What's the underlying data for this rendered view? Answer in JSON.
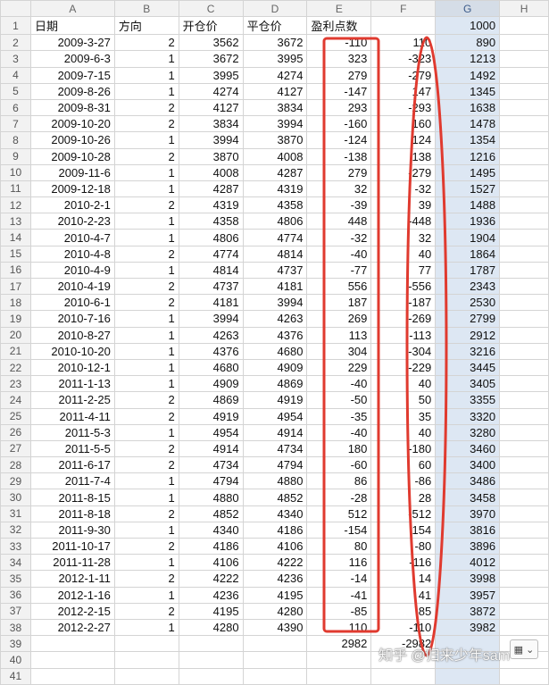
{
  "columns": [
    "A",
    "B",
    "C",
    "D",
    "E",
    "F",
    "G",
    "H"
  ],
  "header": [
    "日期",
    "方向",
    "开仓价",
    "平仓价",
    "盈利点数",
    "",
    1000,
    ""
  ],
  "rows": [
    [
      "2009-3-27",
      2,
      3562,
      3672,
      -110,
      110,
      890
    ],
    [
      "2009-6-3",
      1,
      3672,
      3995,
      323,
      -323,
      1213
    ],
    [
      "2009-7-15",
      1,
      3995,
      4274,
      279,
      -279,
      1492
    ],
    [
      "2009-8-26",
      1,
      4274,
      4127,
      -147,
      147,
      1345
    ],
    [
      "2009-8-31",
      2,
      4127,
      3834,
      293,
      -293,
      1638
    ],
    [
      "2009-10-20",
      2,
      3834,
      3994,
      -160,
      160,
      1478
    ],
    [
      "2009-10-26",
      1,
      3994,
      3870,
      -124,
      124,
      1354
    ],
    [
      "2009-10-28",
      2,
      3870,
      4008,
      -138,
      138,
      1216
    ],
    [
      "2009-11-6",
      1,
      4008,
      4287,
      279,
      -279,
      1495
    ],
    [
      "2009-12-18",
      1,
      4287,
      4319,
      32,
      -32,
      1527
    ],
    [
      "2010-2-1",
      2,
      4319,
      4358,
      -39,
      39,
      1488
    ],
    [
      "2010-2-23",
      1,
      4358,
      4806,
      448,
      -448,
      1936
    ],
    [
      "2010-4-7",
      1,
      4806,
      4774,
      -32,
      32,
      1904
    ],
    [
      "2010-4-8",
      2,
      4774,
      4814,
      -40,
      40,
      1864
    ],
    [
      "2010-4-9",
      1,
      4814,
      4737,
      -77,
      77,
      1787
    ],
    [
      "2010-4-19",
      2,
      4737,
      4181,
      556,
      -556,
      2343
    ],
    [
      "2010-6-1",
      2,
      4181,
      3994,
      187,
      -187,
      2530
    ],
    [
      "2010-7-16",
      1,
      3994,
      4263,
      269,
      -269,
      2799
    ],
    [
      "2010-8-27",
      1,
      4263,
      4376,
      113,
      -113,
      2912
    ],
    [
      "2010-10-20",
      1,
      4376,
      4680,
      304,
      -304,
      3216
    ],
    [
      "2010-12-1",
      1,
      4680,
      4909,
      229,
      -229,
      3445
    ],
    [
      "2011-1-13",
      1,
      4909,
      4869,
      -40,
      40,
      3405
    ],
    [
      "2011-2-25",
      2,
      4869,
      4919,
      -50,
      50,
      3355
    ],
    [
      "2011-4-11",
      2,
      4919,
      4954,
      -35,
      35,
      3320
    ],
    [
      "2011-5-3",
      1,
      4954,
      4914,
      -40,
      40,
      3280
    ],
    [
      "2011-5-5",
      2,
      4914,
      4734,
      180,
      -180,
      3460
    ],
    [
      "2011-6-17",
      2,
      4734,
      4794,
      -60,
      60,
      3400
    ],
    [
      "2011-7-4",
      1,
      4794,
      4880,
      86,
      -86,
      3486
    ],
    [
      "2011-8-15",
      1,
      4880,
      4852,
      -28,
      28,
      3458
    ],
    [
      "2011-8-18",
      2,
      4852,
      4340,
      512,
      -512,
      3970
    ],
    [
      "2011-9-30",
      1,
      4340,
      4186,
      -154,
      154,
      3816
    ],
    [
      "2011-10-17",
      2,
      4186,
      4106,
      80,
      -80,
      3896
    ],
    [
      "2011-11-28",
      1,
      4106,
      4222,
      116,
      -116,
      4012
    ],
    [
      "2012-1-11",
      2,
      4222,
      4236,
      -14,
      14,
      3998
    ],
    [
      "2012-1-16",
      1,
      4236,
      4195,
      -41,
      41,
      3957
    ],
    [
      "2012-2-15",
      2,
      4195,
      4280,
      -85,
      85,
      3872
    ],
    [
      "2012-2-27",
      1,
      4280,
      4390,
      110,
      -110,
      3982
    ]
  ],
  "totals": [
    "",
    "",
    "",
    "",
    2982,
    -2982,
    ""
  ],
  "watermark": "知乎 @归来少年sam",
  "paste_options_icon": "clipboard-icon",
  "colors": {
    "highlight_col": "#dde7f3",
    "annotation_red": "#e03a2f",
    "header_bg": "#f2f2f2"
  }
}
